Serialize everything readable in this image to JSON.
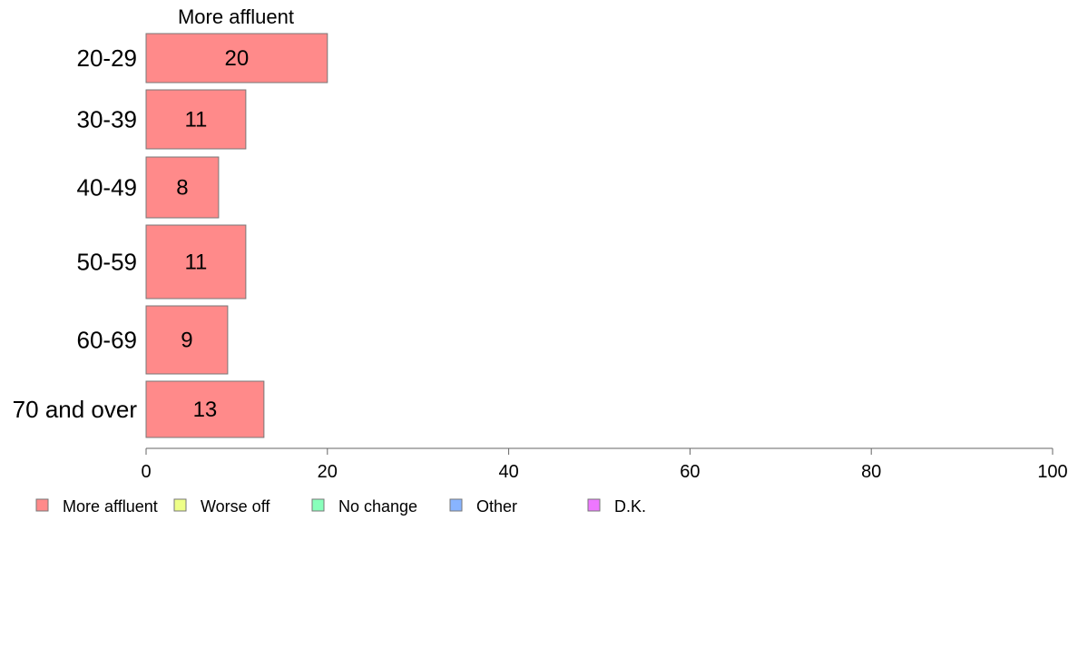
{
  "chart_data": {
    "type": "bar",
    "orientation": "horizontal",
    "title": "More affluent",
    "categories": [
      "20-29",
      "30-39",
      "40-49",
      "50-59",
      "60-69",
      "70 and over"
    ],
    "series": [
      {
        "name": "More affluent",
        "color": "#ff8a8a",
        "values": [
          20,
          11,
          8,
          11,
          9,
          13
        ]
      }
    ],
    "xlim": [
      0,
      100
    ],
    "xticks": [
      0,
      20,
      40,
      60,
      80,
      100
    ],
    "grid": false,
    "legend": {
      "placement": "bottom-left",
      "entries": [
        {
          "label": "More affluent",
          "color": "#ff8a8a"
        },
        {
          "label": "Worse off",
          "color": "#eeff88"
        },
        {
          "label": "No change",
          "color": "#88ffbb"
        },
        {
          "label": "Other",
          "color": "#88b4ff"
        },
        {
          "label": "D.K.",
          "color": "#ee77ff"
        }
      ]
    }
  }
}
